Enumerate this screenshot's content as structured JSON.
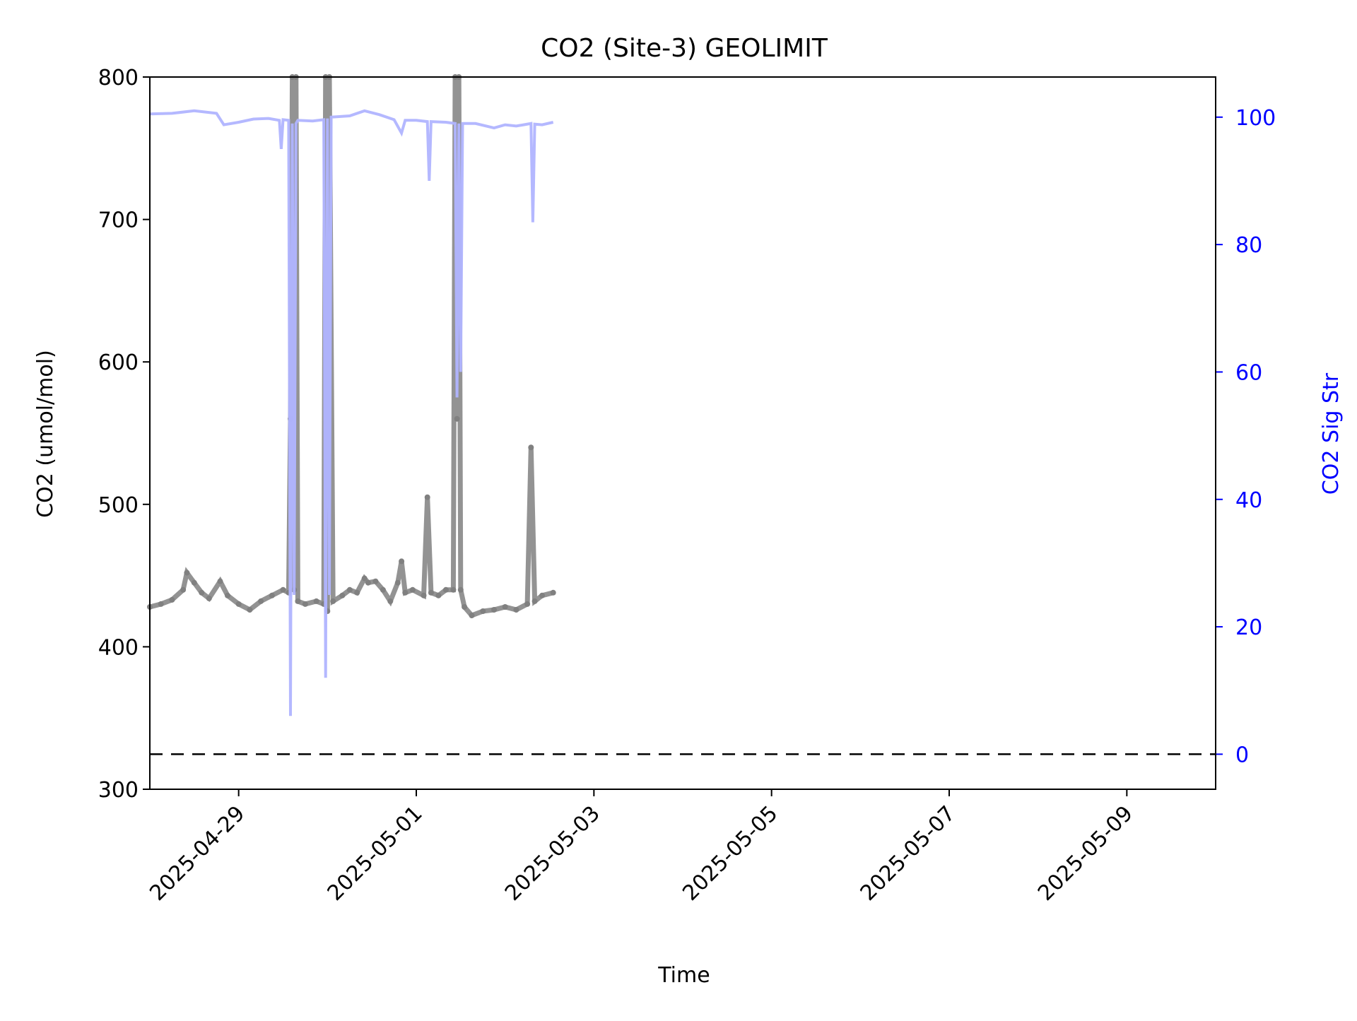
{
  "chart_data": {
    "type": "line",
    "title": "CO2 (Site-3) GEOLIMIT",
    "xlabel": "Time",
    "ylabel": "CO2 (umol/mol)",
    "y2label": "CO2 Sig Str",
    "xlim": [
      "2025-04-28",
      "2025-05-10"
    ],
    "ylim": [
      300,
      800
    ],
    "y2lim": [
      -5.5,
      106.3
    ],
    "x_ticks": [
      "2025-04-29",
      "2025-05-01",
      "2025-05-03",
      "2025-05-05",
      "2025-05-07",
      "2025-05-09"
    ],
    "y_ticks": [
      300,
      400,
      500,
      600,
      700,
      800
    ],
    "y2_ticks": [
      0,
      20,
      40,
      60,
      80,
      100
    ],
    "grid": false,
    "reference_line": {
      "axis": "y2",
      "value": 0,
      "style": "dashed",
      "color": "#000000"
    },
    "series": [
      {
        "axis": "y",
        "style": "scatter",
        "color": "#808080",
        "points": [
          [
            "2025-04-28T00:00",
            428
          ],
          [
            "2025-04-28T03:00",
            430
          ],
          [
            "2025-04-28T06:00",
            433
          ],
          [
            "2025-04-28T09:00",
            440
          ],
          [
            "2025-04-28T10:00",
            452
          ],
          [
            "2025-04-28T12:00",
            445
          ],
          [
            "2025-04-28T14:00",
            438
          ],
          [
            "2025-04-28T16:00",
            434
          ],
          [
            "2025-04-28T19:00",
            446
          ],
          [
            "2025-04-28T21:00",
            436
          ],
          [
            "2025-04-29T00:00",
            430
          ],
          [
            "2025-04-29T03:00",
            426
          ],
          [
            "2025-04-29T06:00",
            432
          ],
          [
            "2025-04-29T09:00",
            436
          ],
          [
            "2025-04-29T12:00",
            440
          ],
          [
            "2025-04-29T13:30",
            438
          ],
          [
            "2025-04-29T14:00",
            560
          ],
          [
            "2025-04-29T14:30",
            800
          ],
          [
            "2025-04-29T15:00",
            440
          ],
          [
            "2025-04-29T15:30",
            800
          ],
          [
            "2025-04-29T16:00",
            432
          ],
          [
            "2025-04-29T18:00",
            430
          ],
          [
            "2025-04-29T21:00",
            432
          ],
          [
            "2025-04-29T23:00",
            430
          ],
          [
            "2025-04-29T23:30",
            800
          ],
          [
            "2025-04-30T00:00",
            425
          ],
          [
            "2025-04-30T00:30",
            800
          ],
          [
            "2025-04-30T01:30",
            432
          ],
          [
            "2025-04-30T04:00",
            436
          ],
          [
            "2025-04-30T06:00",
            440
          ],
          [
            "2025-04-30T08:00",
            438
          ],
          [
            "2025-04-30T10:00",
            448
          ],
          [
            "2025-04-30T11:00",
            445
          ],
          [
            "2025-04-30T13:00",
            446
          ],
          [
            "2025-04-30T15:00",
            440
          ],
          [
            "2025-04-30T17:00",
            432
          ],
          [
            "2025-04-30T19:00",
            445
          ],
          [
            "2025-04-30T20:00",
            460
          ],
          [
            "2025-04-30T21:00",
            438
          ],
          [
            "2025-04-30T23:00",
            440
          ],
          [
            "2025-05-01T02:00",
            436
          ],
          [
            "2025-05-01T03:00",
            505
          ],
          [
            "2025-05-01T04:00",
            438
          ],
          [
            "2025-05-01T06:00",
            436
          ],
          [
            "2025-05-01T08:00",
            440
          ],
          [
            "2025-05-01T10:00",
            440
          ],
          [
            "2025-05-01T10:30",
            800
          ],
          [
            "2025-05-01T11:00",
            560
          ],
          [
            "2025-05-01T11:30",
            800
          ],
          [
            "2025-05-01T12:00",
            440
          ],
          [
            "2025-05-01T13:00",
            428
          ],
          [
            "2025-05-01T15:00",
            422
          ],
          [
            "2025-05-01T18:00",
            425
          ],
          [
            "2025-05-01T21:00",
            426
          ],
          [
            "2025-05-02T00:00",
            428
          ],
          [
            "2025-05-02T03:00",
            426
          ],
          [
            "2025-05-02T06:00",
            430
          ],
          [
            "2025-05-02T07:00",
            540
          ],
          [
            "2025-05-02T08:00",
            432
          ],
          [
            "2025-05-02T10:00",
            436
          ],
          [
            "2025-05-02T13:00",
            438
          ]
        ]
      },
      {
        "axis": "y2",
        "style": "line",
        "color": "#b0b4ff",
        "points": [
          [
            "2025-04-28T00:00",
            100.5
          ],
          [
            "2025-04-28T06:00",
            100.6
          ],
          [
            "2025-04-28T12:00",
            101.0
          ],
          [
            "2025-04-28T18:00",
            100.6
          ],
          [
            "2025-04-28T20:00",
            98.8
          ],
          [
            "2025-04-29T00:00",
            99.2
          ],
          [
            "2025-04-29T04:00",
            99.7
          ],
          [
            "2025-04-29T08:00",
            99.8
          ],
          [
            "2025-04-29T11:00",
            99.5
          ],
          [
            "2025-04-29T11:30",
            95.0
          ],
          [
            "2025-04-29T12:00",
            99.6
          ],
          [
            "2025-04-29T13:30",
            99.5
          ],
          [
            "2025-04-29T14:00",
            6.0
          ],
          [
            "2025-04-29T14:30",
            99.0
          ],
          [
            "2025-04-29T15:00",
            25.0
          ],
          [
            "2025-04-29T15:30",
            99.0
          ],
          [
            "2025-04-29T16:00",
            99.5
          ],
          [
            "2025-04-29T20:00",
            99.4
          ],
          [
            "2025-04-29T23:00",
            99.6
          ],
          [
            "2025-04-29T23:30",
            12.0
          ],
          [
            "2025-04-30T00:00",
            99.8
          ],
          [
            "2025-04-30T00:30",
            25.0
          ],
          [
            "2025-04-30T01:00",
            100.0
          ],
          [
            "2025-04-30T06:00",
            100.2
          ],
          [
            "2025-04-30T10:00",
            101.0
          ],
          [
            "2025-04-30T14:00",
            100.4
          ],
          [
            "2025-04-30T18:00",
            99.6
          ],
          [
            "2025-04-30T20:00",
            97.5
          ],
          [
            "2025-04-30T21:00",
            99.5
          ],
          [
            "2025-05-01T00:00",
            99.5
          ],
          [
            "2025-05-01T03:00",
            99.3
          ],
          [
            "2025-05-01T03:30",
            90.0
          ],
          [
            "2025-05-01T04:00",
            99.3
          ],
          [
            "2025-05-01T08:00",
            99.2
          ],
          [
            "2025-05-01T10:30",
            99.0
          ],
          [
            "2025-05-01T11:00",
            56.0
          ],
          [
            "2025-05-01T11:30",
            99.0
          ],
          [
            "2025-05-01T12:00",
            60.0
          ],
          [
            "2025-05-01T12:30",
            99.0
          ],
          [
            "2025-05-01T16:00",
            99.0
          ],
          [
            "2025-05-01T21:00",
            98.3
          ],
          [
            "2025-05-02T00:00",
            98.8
          ],
          [
            "2025-05-02T03:00",
            98.6
          ],
          [
            "2025-05-02T05:00",
            98.8
          ],
          [
            "2025-05-02T07:00",
            99.0
          ],
          [
            "2025-05-02T07:30",
            83.5
          ],
          [
            "2025-05-02T08:00",
            98.9
          ],
          [
            "2025-05-02T10:00",
            98.8
          ],
          [
            "2025-05-02T13:00",
            99.2
          ]
        ]
      }
    ]
  }
}
